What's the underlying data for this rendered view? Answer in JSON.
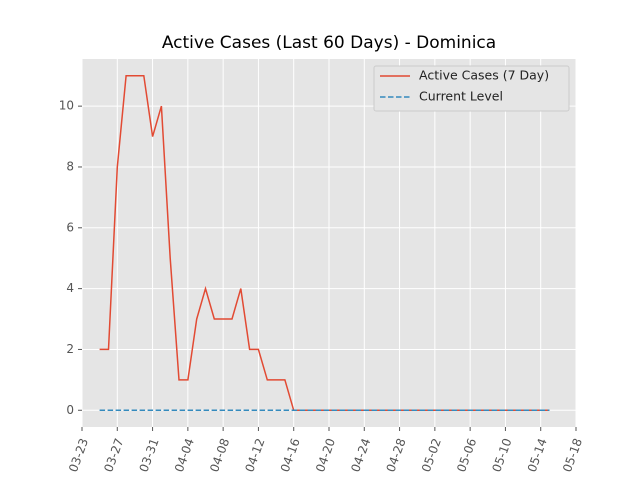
{
  "chart_data": {
    "type": "line",
    "title": "Active Cases (Last 60 Days) - Dominica",
    "series": [
      {
        "name": "Active Cases (7 Day)",
        "color": "#e24a33",
        "dash": "solid",
        "x": [
          "03-25",
          "03-26",
          "03-27",
          "03-28",
          "03-29",
          "03-30",
          "03-31",
          "04-01",
          "04-02",
          "04-03",
          "04-04",
          "04-05",
          "04-06",
          "04-07",
          "04-08",
          "04-09",
          "04-10",
          "04-11",
          "04-12",
          "04-13",
          "04-14",
          "04-15",
          "04-16",
          "04-17",
          "04-18",
          "04-19",
          "04-20",
          "04-21",
          "04-22",
          "04-23",
          "04-24",
          "04-25",
          "04-26",
          "04-27",
          "04-28",
          "04-29",
          "04-30",
          "05-01",
          "05-02",
          "05-03",
          "05-04",
          "05-05",
          "05-06",
          "05-07",
          "05-08",
          "05-09",
          "05-10",
          "05-11",
          "05-12",
          "05-13",
          "05-14",
          "05-15"
        ],
        "values": [
          2,
          2,
          8,
          11,
          11,
          11,
          9,
          10,
          5,
          1,
          1,
          3,
          4,
          3,
          3,
          3,
          4,
          2,
          2,
          1,
          1,
          1,
          0,
          0,
          0,
          0,
          0,
          0,
          0,
          0,
          0,
          0,
          0,
          0,
          0,
          0,
          0,
          0,
          0,
          0,
          0,
          0,
          0,
          0,
          0,
          0,
          0,
          0,
          0,
          0,
          0,
          0
        ]
      },
      {
        "name": "Current Level",
        "color": "#348abd",
        "dash": "dashed",
        "x": [
          "03-25",
          "05-15"
        ],
        "values": [
          0,
          0
        ]
      }
    ],
    "xlim": [
      "03-23",
      "05-18"
    ],
    "xticks": [
      "03-23",
      "03-27",
      "03-31",
      "04-04",
      "04-08",
      "04-12",
      "04-16",
      "04-20",
      "04-24",
      "04-28",
      "05-02",
      "05-06",
      "05-10",
      "05-14",
      "05-18"
    ],
    "ylim": [
      -0.55,
      11.55
    ],
    "yticks": [
      0,
      2,
      4,
      6,
      8,
      10
    ],
    "grid": true,
    "legend": "upper right"
  }
}
